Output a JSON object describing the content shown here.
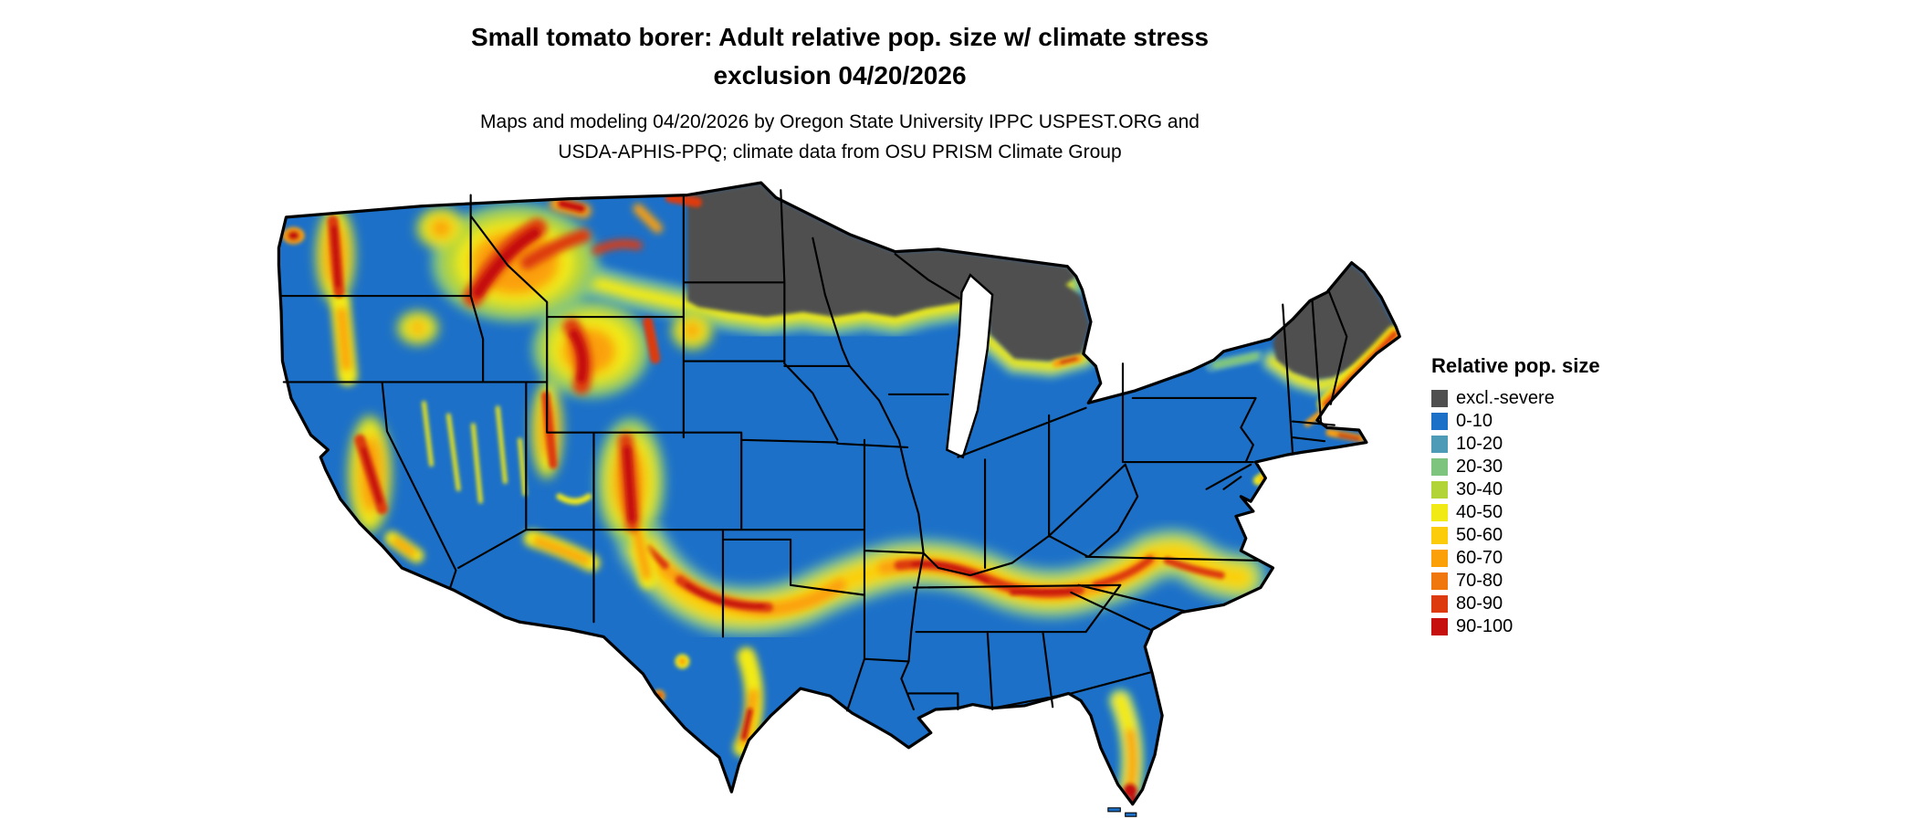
{
  "header": {
    "title_line1": "Small tomato borer: Adult relative pop. size w/ climate stress",
    "title_line2": "exclusion 04/20/2026",
    "subtitle_line1": "Maps and modeling 04/20/2026 by Oregon State University IPPC USPEST.ORG and",
    "subtitle_line2": "USDA-APHIS-PPQ; climate data from OSU PRISM Climate Group"
  },
  "legend": {
    "title": "Relative pop. size",
    "entries": [
      {
        "label": "excl.-severe",
        "color": "#4f4f4f"
      },
      {
        "label": "0-10",
        "color": "#1c70c8"
      },
      {
        "label": "10-20",
        "color": "#4e9bb8"
      },
      {
        "label": "20-30",
        "color": "#7ec47e"
      },
      {
        "label": "30-40",
        "color": "#b2d437"
      },
      {
        "label": "40-50",
        "color": "#f2ea15"
      },
      {
        "label": "50-60",
        "color": "#fccc0a"
      },
      {
        "label": "60-70",
        "color": "#fba008"
      },
      {
        "label": "70-80",
        "color": "#f0760e"
      },
      {
        "label": "80-90",
        "color": "#dd3a10"
      },
      {
        "label": "90-100",
        "color": "#c5100f"
      }
    ]
  }
}
